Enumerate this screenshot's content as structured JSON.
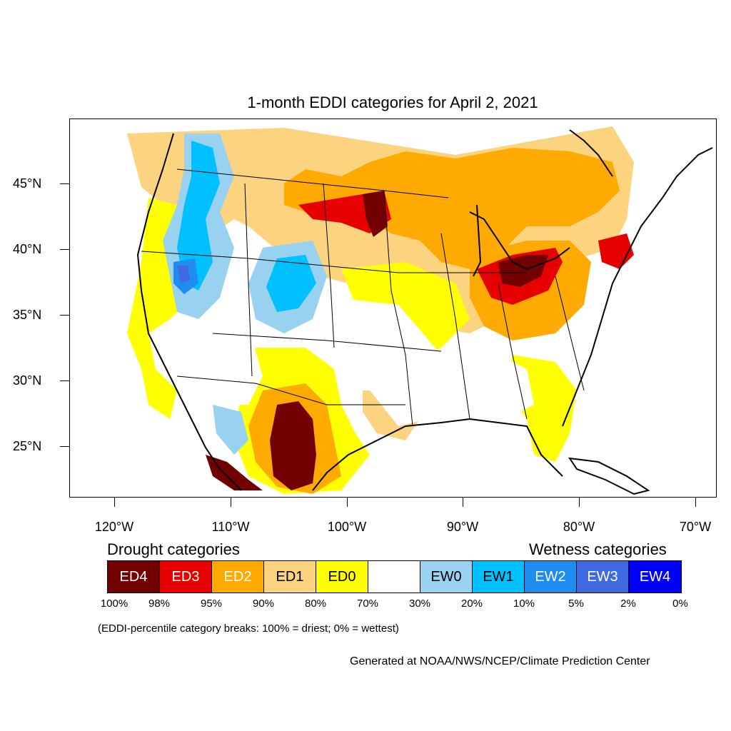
{
  "title": "1-month EDDI categories for April 2, 2021",
  "lat_labels": [
    "45°N",
    "40°N",
    "35°N",
    "30°N",
    "25°N"
  ],
  "lon_labels": [
    "120°W",
    "110°W",
    "100°W",
    "90°W",
    "80°W",
    "70°W"
  ],
  "legend": {
    "drought_title": "Drought categories",
    "wetness_title": "Wetness categories",
    "categories": [
      {
        "label": "ED4",
        "color": "#730000",
        "text_color": "#ffffff"
      },
      {
        "label": "ED3",
        "color": "#e60000",
        "text_color": "#ffffff"
      },
      {
        "label": "ED2",
        "color": "#ffaa00",
        "text_color": "#ffffff"
      },
      {
        "label": "ED1",
        "color": "#fcd37f",
        "text_color": "#000000"
      },
      {
        "label": "ED0",
        "color": "#ffff00",
        "text_color": "#000000"
      },
      {
        "label": "",
        "color": "#ffffff",
        "text_color": "#000000"
      },
      {
        "label": "EW0",
        "color": "#99d2f0",
        "text_color": "#000000"
      },
      {
        "label": "EW1",
        "color": "#00c0ff",
        "text_color": "#000000"
      },
      {
        "label": "EW2",
        "color": "#1e8cf0",
        "text_color": "#ffffff"
      },
      {
        "label": "EW3",
        "color": "#4169e1",
        "text_color": "#ffffff"
      },
      {
        "label": "EW4",
        "color": "#0000ff",
        "text_color": "#ffffff"
      }
    ],
    "percentiles": [
      "100%",
      "98%",
      "95%",
      "90%",
      "80%",
      "70%",
      "30%",
      "20%",
      "10%",
      "5%",
      "2%",
      "0%"
    ]
  },
  "note": "(EDDI-percentile category breaks: 100% = driest; 0% = wettest)",
  "credit": "Generated at NOAA/NWS/NCEP/Climate Prediction Center"
}
